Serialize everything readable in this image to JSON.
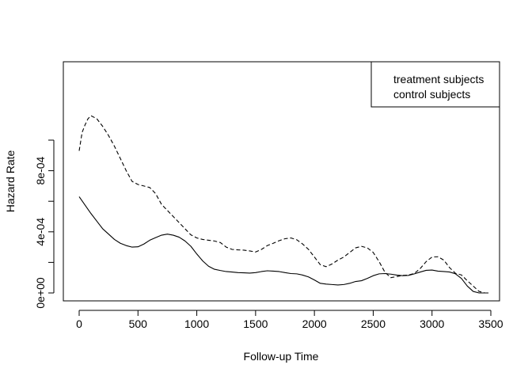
{
  "chart_data": {
    "type": "line",
    "title": "",
    "xlabel": "Follow-up Time",
    "ylabel": "Hazard Rate",
    "xlim": [
      0,
      3500
    ],
    "ylim": [
      0,
      0.00115
    ],
    "x_ticks": [
      0,
      500,
      1000,
      1500,
      2000,
      2500,
      3000,
      3500
    ],
    "y_ticks": [
      0,
      0.0002,
      0.0004,
      0.0006,
      0.0008,
      0.001
    ],
    "y_tick_labels": [
      "0e+00",
      "",
      "4e-04",
      "",
      "8e-04",
      ""
    ],
    "grid": false,
    "legend": {
      "position": "top-right",
      "entries": [
        "treatment subjects",
        "control subjects"
      ]
    },
    "series": [
      {
        "name": "treatment subjects",
        "line_style": "solid",
        "color": "#000000",
        "x": [
          0,
          50,
          100,
          150,
          200,
          250,
          300,
          350,
          400,
          450,
          500,
          550,
          600,
          650,
          700,
          750,
          800,
          850,
          900,
          950,
          1000,
          1050,
          1100,
          1150,
          1200,
          1250,
          1300,
          1350,
          1400,
          1450,
          1500,
          1550,
          1600,
          1650,
          1700,
          1750,
          1800,
          1850,
          1900,
          1950,
          2000,
          2050,
          2100,
          2150,
          2200,
          2250,
          2300,
          2350,
          2400,
          2450,
          2500,
          2550,
          2600,
          2650,
          2700,
          2750,
          2800,
          2850,
          2900,
          2950,
          3000,
          3050,
          3100,
          3150,
          3200,
          3250,
          3300,
          3350,
          3400,
          3450,
          3480
        ],
        "y": [
          0.00063,
          0.000575,
          0.00052,
          0.00047,
          0.00042,
          0.000385,
          0.00035,
          0.000325,
          0.00031,
          0.0003,
          0.000302,
          0.00032,
          0.000345,
          0.000362,
          0.000378,
          0.000385,
          0.000378,
          0.000365,
          0.00034,
          0.000305,
          0.000255,
          0.00021,
          0.000175,
          0.000155,
          0.000147,
          0.00014,
          0.000137,
          0.000133,
          0.000132,
          0.00013,
          0.000133,
          0.00014,
          0.000145,
          0.000143,
          0.00014,
          0.000133,
          0.000127,
          0.000125,
          0.000117,
          0.000105,
          8.5e-05,
          6.3e-05,
          5.8e-05,
          5.5e-05,
          5.2e-05,
          5.5e-05,
          6.3e-05,
          7.5e-05,
          8e-05,
          9.5e-05,
          0.000113,
          0.000125,
          0.000127,
          0.000123,
          0.000117,
          0.000113,
          0.000115,
          0.000125,
          0.000137,
          0.000148,
          0.00015,
          0.000143,
          0.00014,
          0.000137,
          0.000125,
          9.5e-05,
          4.5e-05,
          1e-05,
          0,
          0,
          0
        ]
      },
      {
        "name": "control subjects",
        "line_style": "dashed",
        "color": "#000000",
        "x": [
          0,
          25,
          50,
          75,
          100,
          150,
          200,
          250,
          300,
          350,
          400,
          450,
          500,
          550,
          600,
          650,
          700,
          750,
          800,
          850,
          900,
          950,
          1000,
          1050,
          1100,
          1150,
          1200,
          1250,
          1300,
          1350,
          1400,
          1450,
          1500,
          1550,
          1600,
          1650,
          1700,
          1750,
          1800,
          1850,
          1900,
          1950,
          2000,
          2050,
          2100,
          2150,
          2200,
          2250,
          2300,
          2350,
          2400,
          2450,
          2500,
          2550,
          2600,
          2650,
          2700,
          2750,
          2800,
          2850,
          2900,
          2950,
          3000,
          3050,
          3100,
          3150,
          3200,
          3250,
          3300,
          3350,
          3400,
          3450,
          3480
        ],
        "y": [
          0.00093,
          0.00105,
          0.0011,
          0.00114,
          0.00116,
          0.00114,
          0.00109,
          0.00103,
          0.00096,
          0.00088,
          0.0008,
          0.00073,
          0.00071,
          0.0007,
          0.00069,
          0.00065,
          0.00058,
          0.00054,
          0.0005,
          0.00046,
          0.00042,
          0.00038,
          0.00036,
          0.00035,
          0.000345,
          0.00034,
          0.00033,
          0.0003,
          0.000285,
          0.000282,
          0.00028,
          0.000275,
          0.000268,
          0.000285,
          0.00031,
          0.000325,
          0.000342,
          0.000355,
          0.00036,
          0.000348,
          0.00032,
          0.000285,
          0.000235,
          0.000185,
          0.000172,
          0.00019,
          0.000215,
          0.000235,
          0.000265,
          0.000295,
          0.000305,
          0.000295,
          0.000265,
          0.000205,
          0.000135,
          0.0001,
          0.000107,
          0.000115,
          0.000117,
          0.000128,
          0.00016,
          0.000205,
          0.000235,
          0.000237,
          0.000215,
          0.000165,
          0.000128,
          0.000118,
          8e-05,
          4.5e-05,
          1e-05,
          0,
          0
        ]
      }
    ]
  }
}
